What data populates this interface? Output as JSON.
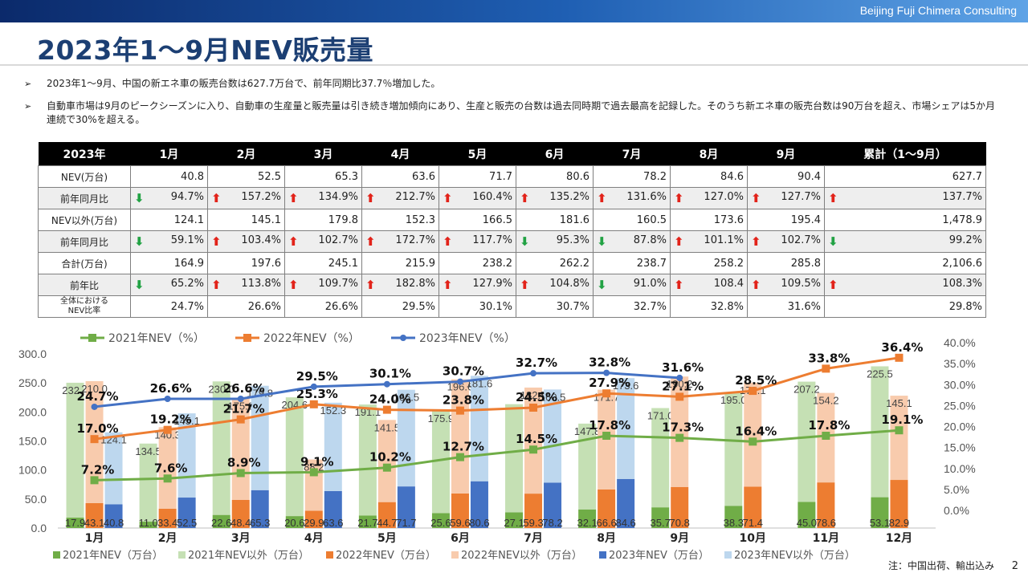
{
  "header": {
    "company": "Beijing Fuji Chimera Consulting"
  },
  "title": "2023年1～9月NEV販売量",
  "bullets": [
    "2023年1～9月、中国の新エネ車の販売台数は627.7万台で、前年同期比37.7％増加した。",
    "自動車市場は9月のピークシーズンに入り、自動車の生産量と販売量は引き続き増加傾向にあり、生産と販売の台数は過去同時期で過去最高を記録した。そのうち新エネ車の販売台数は90万台を超え、市場シェアは5か月連続で30%を超える。"
  ],
  "table": {
    "headers": [
      "2023年",
      "1月",
      "2月",
      "3月",
      "4月",
      "5月",
      "6月",
      "7月",
      "8月",
      "9月",
      "累計（1～9月）"
    ],
    "rows": [
      {
        "label": "NEV(万台)",
        "cells": [
          {
            "v": "40.8"
          },
          {
            "v": "52.5"
          },
          {
            "v": "65.3"
          },
          {
            "v": "63.6"
          },
          {
            "v": "71.7"
          },
          {
            "v": "80.6"
          },
          {
            "v": "78.2"
          },
          {
            "v": "84.6"
          },
          {
            "v": "90.4"
          },
          {
            "v": "627.7"
          }
        ]
      },
      {
        "label": "前年同月比",
        "shade": true,
        "cells": [
          {
            "v": "94.7%",
            "t": "down"
          },
          {
            "v": "157.2%",
            "t": "up"
          },
          {
            "v": "134.9%",
            "t": "up"
          },
          {
            "v": "212.7%",
            "t": "up"
          },
          {
            "v": "160.4%",
            "t": "up"
          },
          {
            "v": "135.2%",
            "t": "up"
          },
          {
            "v": "131.6%",
            "t": "up"
          },
          {
            "v": "127.0%",
            "t": "up"
          },
          {
            "v": "127.7%",
            "t": "up"
          },
          {
            "v": "137.7%",
            "t": "up"
          }
        ]
      },
      {
        "label": "NEV以外(万台)",
        "cells": [
          {
            "v": "124.1"
          },
          {
            "v": "145.1"
          },
          {
            "v": "179.8"
          },
          {
            "v": "152.3"
          },
          {
            "v": "166.5"
          },
          {
            "v": "181.6"
          },
          {
            "v": "160.5"
          },
          {
            "v": "173.6"
          },
          {
            "v": "195.4"
          },
          {
            "v": "1,478.9"
          }
        ]
      },
      {
        "label": "前年同月比",
        "shade": true,
        "cells": [
          {
            "v": "59.1%",
            "t": "down"
          },
          {
            "v": "103.4%",
            "t": "up"
          },
          {
            "v": "102.7%",
            "t": "up"
          },
          {
            "v": "172.7%",
            "t": "up"
          },
          {
            "v": "117.7%",
            "t": "up"
          },
          {
            "v": "95.3%",
            "t": "down"
          },
          {
            "v": "87.8%",
            "t": "down"
          },
          {
            "v": "101.1%",
            "t": "up"
          },
          {
            "v": "102.7%",
            "t": "up"
          },
          {
            "v": "99.2%",
            "t": "down"
          }
        ]
      },
      {
        "label": "合計(万台)",
        "cells": [
          {
            "v": "164.9"
          },
          {
            "v": "197.6"
          },
          {
            "v": "245.1"
          },
          {
            "v": "215.9"
          },
          {
            "v": "238.2"
          },
          {
            "v": "262.2"
          },
          {
            "v": "238.7"
          },
          {
            "v": "258.2"
          },
          {
            "v": "285.8"
          },
          {
            "v": "2,106.6"
          }
        ]
      },
      {
        "label": "前年比",
        "shade": true,
        "cells": [
          {
            "v": "65.2%",
            "t": "down"
          },
          {
            "v": "113.8%",
            "t": "up"
          },
          {
            "v": "109.7%",
            "t": "up"
          },
          {
            "v": "182.8%",
            "t": "up"
          },
          {
            "v": "127.9%",
            "t": "up"
          },
          {
            "v": "104.8%",
            "t": "up"
          },
          {
            "v": "91.0%",
            "t": "down"
          },
          {
            "v": "108.4",
            "t": "up"
          },
          {
            "v": "109.5%",
            "t": "up"
          },
          {
            "v": "108.3%",
            "t": "up"
          }
        ]
      },
      {
        "label": "全体における\nNEV比率",
        "small": true,
        "cells": [
          {
            "v": "24.7%"
          },
          {
            "v": "26.6%"
          },
          {
            "v": "26.6%"
          },
          {
            "v": "29.5%"
          },
          {
            "v": "30.1%"
          },
          {
            "v": "30.7%"
          },
          {
            "v": "32.7%"
          },
          {
            "v": "32.8%"
          },
          {
            "v": "31.6%"
          },
          {
            "v": "29.8%"
          }
        ]
      }
    ]
  },
  "chart_data": {
    "type": "bar",
    "categories": [
      "1月",
      "2月",
      "3月",
      "4月",
      "5月",
      "6月",
      "7月",
      "8月",
      "9月",
      "10月",
      "11月",
      "12月"
    ],
    "ylim_left": [
      0,
      300
    ],
    "yticks_left": [
      "0.0",
      "50.0",
      "100.0",
      "150.0",
      "200.0",
      "250.0",
      "300.0"
    ],
    "ylim_right": [
      0,
      40
    ],
    "yticks_right": [
      "0.0%",
      "5.0%",
      "10.0%",
      "15.0%",
      "20.0%",
      "25.0%",
      "30.0%",
      "35.0%",
      "40.0%"
    ],
    "stacks": [
      {
        "year": "2021",
        "color_nev": "#70ad47",
        "color_other": "#c5e0b4",
        "nev": [
          17.9,
          11.0,
          22.6,
          20.6,
          21.7,
          25.6,
          27.1,
          32.1,
          35.7,
          38.3,
          45.0,
          53.1
        ],
        "other": [
          232.4,
          134.5,
          230.0,
          204.6,
          191.1,
          175.9,
          186.3,
          147.8,
          171.0,
          195.0,
          207.2,
          225.5
        ],
        "nev_labels": [
          "17.9",
          "11.0",
          "22.6",
          "20.6",
          "21.7",
          "25.6",
          "27.1",
          "32.1",
          "35.7",
          "38.3",
          "45.0",
          "53.1"
        ],
        "other_labels": [
          "232.4",
          "134.5",
          "230.0",
          "204.6",
          "191.1",
          "175.9",
          "",
          "147.8",
          "171.0",
          "195.0",
          "207.2",
          "225.5"
        ]
      },
      {
        "year": "2022",
        "color_nev": "#ed7d31",
        "color_other": "#f8cbad",
        "nev": [
          43.1,
          33.4,
          48.4,
          29.9,
          44.7,
          59.6,
          59.3,
          66.6,
          70.8,
          71.4,
          78.6,
          82.9
        ],
        "other": [
          210.0,
          140.3,
          175.0,
          88.2,
          141.5,
          196.6,
          182.7,
          171.7,
          190.2,
          179.1,
          154.2,
          145.1
        ],
        "nev_labels": [
          "43.1",
          "33.4",
          "48.4",
          "29.9",
          "44.7",
          "59.6",
          "59.3",
          "66.6",
          "70.8",
          "71.4",
          "78.6",
          "82.9"
        ],
        "other_labels": [
          "210.0",
          "140.3",
          "175.0",
          "88.2",
          "141.5",
          "196.6",
          "182.7",
          "171.7",
          "190.2",
          "179.1",
          "154.2",
          "145.1"
        ]
      },
      {
        "year": "2023",
        "color_nev": "#4472c4",
        "color_other": "#bdd7ee",
        "nev": [
          40.8,
          52.5,
          65.3,
          63.6,
          71.7,
          80.6,
          78.2,
          84.6,
          null,
          null,
          null,
          null
        ],
        "other": [
          124.1,
          145.1,
          179.8,
          152.3,
          166.5,
          181.6,
          160.5,
          173.6,
          null,
          null,
          null,
          null
        ],
        "nev_labels": [
          "40.8",
          "52.5",
          "65.3",
          "63.6",
          "71.7",
          "80.6",
          "78.2",
          "84.6",
          "",
          "",
          "",
          ""
        ],
        "other_labels": [
          "124.1",
          "145.1",
          "179.8",
          "152.3",
          "166.5",
          "181.6",
          "160.5",
          "173.6",
          "",
          "",
          "",
          ""
        ]
      }
    ],
    "lines": [
      {
        "name": "2021年NEV（%）",
        "color": "#70ad47",
        "marker": "square",
        "values": [
          7.2,
          7.6,
          8.9,
          9.1,
          10.2,
          12.7,
          14.5,
          17.8,
          17.3,
          16.4,
          17.8,
          19.1
        ],
        "labels": [
          "7.2%",
          "7.6%",
          "8.9%",
          "9.1%",
          "10.2%",
          "12.7%",
          "14.5%",
          "17.8%",
          "17.3%",
          "16.4%",
          "17.8%",
          "19.1%"
        ]
      },
      {
        "name": "2022年NEV（%）",
        "color": "#ed7d31",
        "marker": "square",
        "values": [
          17.0,
          19.2,
          21.7,
          25.3,
          24.0,
          23.8,
          24.5,
          27.9,
          27.1,
          28.5,
          33.8,
          36.4
        ],
        "labels": [
          "17.0%",
          "19.2%",
          "21.7%",
          "25.3%",
          "24.0%",
          "23.8%",
          "24.5%",
          "27.9%",
          "27.1%",
          "28.5%",
          "33.8%",
          "36.4%"
        ]
      },
      {
        "name": "2023年NEV（%）",
        "color": "#4472c4",
        "marker": "circle",
        "values": [
          24.7,
          26.6,
          26.6,
          29.5,
          30.1,
          30.7,
          32.7,
          32.8,
          31.6,
          null,
          null,
          null
        ],
        "labels": [
          "24.7%",
          "26.6%",
          "26.6%",
          "29.5%",
          "30.1%",
          "30.7%",
          "32.7%",
          "32.8%",
          "31.6%",
          "",
          "",
          ""
        ]
      }
    ],
    "legend_top": [
      "2021年NEV（%）",
      "2022年NEV（%）",
      "2023年NEV（%）"
    ],
    "legend_bottom": [
      {
        "label": "2021年NEV（万台）",
        "color": "#70ad47"
      },
      {
        "label": "2021年NEV以外（万台）",
        "color": "#c5e0b4"
      },
      {
        "label": "2022年NEV（万台）",
        "color": "#ed7d31"
      },
      {
        "label": "2022年NEV以外（万台）",
        "color": "#f8cbad"
      },
      {
        "label": "2023年NEV（万台）",
        "color": "#4472c4"
      },
      {
        "label": "2023年NEV以外（万台）",
        "color": "#bdd7ee"
      }
    ]
  },
  "footer": {
    "note": "注：中国出荷、輸出込み",
    "page": "2"
  }
}
